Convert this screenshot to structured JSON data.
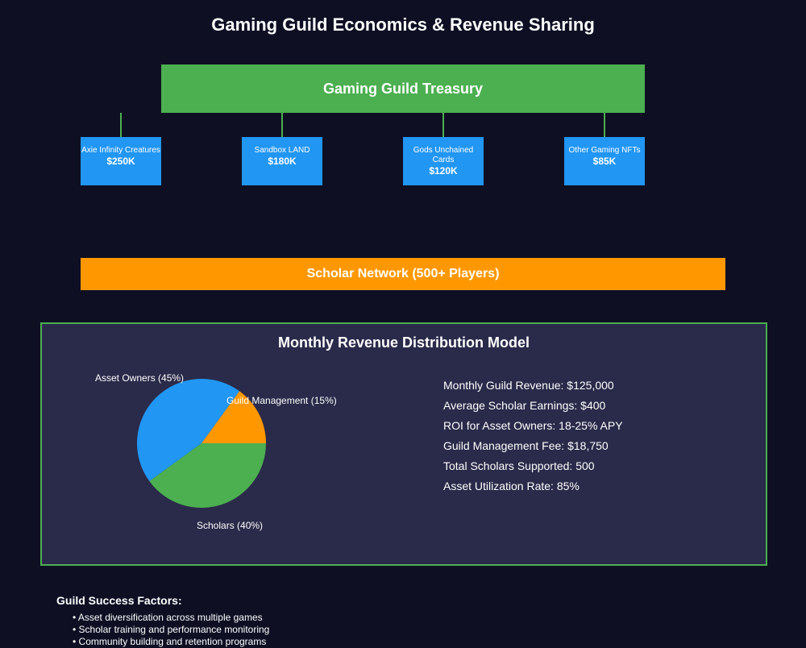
{
  "title": "Gaming Guild Economics & Revenue Sharing",
  "treasury": {
    "label": "Gaming Guild Treasury",
    "color": "#4caf50"
  },
  "assets": [
    {
      "name": "Axie Infinity Creatures",
      "value": "$250K"
    },
    {
      "name": "Sandbox LAND",
      "value": "$180K"
    },
    {
      "name": "Gods Unchained Cards",
      "value": "$120K"
    },
    {
      "name": "Other Gaming NFTs",
      "value": "$85K"
    }
  ],
  "scholar_network": {
    "label": "Scholar Network (500+ Players)",
    "color": "#ff9800"
  },
  "distribution": {
    "title": "Monthly Revenue Distribution Model",
    "slices": [
      {
        "label": "Asset Owners (45%)",
        "percent": 45,
        "color": "#2196f3"
      },
      {
        "label": "Guild Management (15%)",
        "percent": 15,
        "color": "#ff9800"
      },
      {
        "label": "Scholars (40%)",
        "percent": 40,
        "color": "#4caf50"
      }
    ],
    "stats": [
      "Monthly Guild Revenue: $125,000",
      "Average Scholar Earnings: $400",
      "ROI for Asset Owners: 18-25% APY",
      "Guild Management Fee: $18,750",
      "Total Scholars Supported: 500",
      "Asset Utilization Rate: 85%"
    ]
  },
  "success_factors": {
    "title": "Guild Success Factors:",
    "items": [
      "Asset diversification across multiple games",
      "Scholar training and performance monitoring",
      "Community building and retention programs"
    ]
  }
}
